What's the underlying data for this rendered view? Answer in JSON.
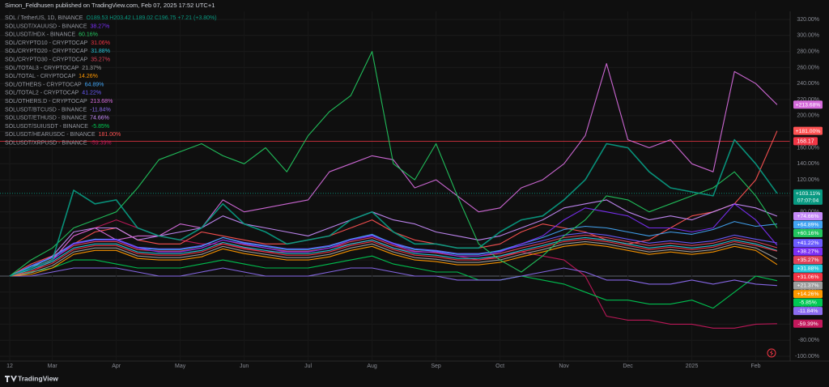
{
  "chart_data": {
    "type": "line",
    "publisher": "Simon_Feldhusen published on TradingView.com, Feb 07, 2025 17:52 UTC+1",
    "brand": "TradingView",
    "grid": true,
    "price_line": 168.17,
    "price_line_color": "#f23645",
    "categories": [
      "12",
      null,
      "Mar",
      null,
      null,
      "Apr",
      null,
      null,
      "May",
      null,
      null,
      "Jun",
      null,
      null,
      "Jul",
      null,
      null,
      "Aug",
      null,
      null,
      "Sep",
      null,
      null,
      "Oct",
      null,
      null,
      "Nov",
      null,
      null,
      "Dec",
      null,
      null,
      "2025",
      null,
      null,
      "Feb",
      null
    ],
    "ylim": [
      -100,
      320
    ],
    "yticks": [
      {
        "value": 320,
        "label": "320.00%"
      },
      {
        "value": 300,
        "label": "300.00%"
      },
      {
        "value": 280,
        "label": "280.00%"
      },
      {
        "value": 260,
        "label": "260.00%"
      },
      {
        "value": 240,
        "label": "240.00%"
      },
      {
        "value": 220,
        "label": "220.00%"
      },
      {
        "value": 200,
        "label": "200.00%"
      },
      {
        "value": 180,
        "label": "180.00%"
      },
      {
        "value": 160,
        "label": "160.00%"
      },
      {
        "value": 140,
        "label": "140.00%"
      },
      {
        "value": 120,
        "label": "120.00%"
      },
      {
        "value": 100,
        "label": "100.00%"
      },
      {
        "value": 80,
        "label": "80.00%"
      },
      {
        "value": 60,
        "label": "60.00%"
      },
      {
        "value": 40,
        "label": "40.00%"
      },
      {
        "value": 20,
        "label": "20.00%"
      },
      {
        "value": 0,
        "label": "0.00%"
      },
      {
        "value": -20,
        "label": "-20.00%"
      },
      {
        "value": -40,
        "label": "-40.00%"
      },
      {
        "value": -60,
        "label": "-60.00%"
      },
      {
        "value": -80,
        "label": "-80.00%"
      },
      {
        "value": -100,
        "label": "-100.00%"
      }
    ],
    "series": [
      {
        "name": "SOL / TetherUS, 1D, BINANCE",
        "legend_value": "O189.53 H203.42 L189.02 C196.75 +7.21 (+3.80%)",
        "end_label": "+103.11%",
        "end_time": "07:07:04",
        "color": "#089981",
        "values": [
          0,
          10,
          20,
          107,
          90,
          95,
          60,
          50,
          45,
          60,
          90,
          65,
          55,
          40,
          45,
          50,
          70,
          80,
          55,
          40,
          40,
          35,
          35,
          55,
          70,
          75,
          95,
          120,
          165,
          160,
          130,
          110,
          105,
          100,
          170,
          140,
          103.11
        ]
      },
      {
        "name": "SOLUSDT/XAUUSD - BINANCE",
        "legend_value": "38.27%",
        "end_label": "+38.27%",
        "color": "#7b2ff7",
        "values": [
          0,
          10,
          20,
          40,
          45,
          45,
          35,
          30,
          30,
          35,
          45,
          40,
          35,
          30,
          30,
          35,
          45,
          50,
          40,
          30,
          30,
          25,
          25,
          30,
          40,
          50,
          70,
          85,
          80,
          75,
          60,
          60,
          55,
          60,
          90,
          70,
          38.27
        ]
      },
      {
        "name": "SOLUSDT/HDX - BINANCE",
        "legend_value": "60.16%",
        "end_label": "+60.16%",
        "color": "#22c55e",
        "values": [
          0,
          20,
          35,
          60,
          70,
          80,
          110,
          145,
          155,
          165,
          150,
          140,
          160,
          130,
          175,
          205,
          225,
          280,
          140,
          120,
          165,
          100,
          40,
          20,
          5,
          25,
          50,
          70,
          100,
          95,
          80,
          90,
          100,
          110,
          130,
          100,
          60.16
        ]
      },
      {
        "name": "SOL/CRYPTO10 - CRYPTOCAP",
        "legend_value": "31.06%",
        "end_label": "+31.06%",
        "color": "#f23645",
        "values": [
          0,
          6,
          16,
          33,
          38,
          38,
          28,
          26,
          26,
          30,
          40,
          34,
          30,
          26,
          26,
          30,
          38,
          43,
          33,
          26,
          24,
          20,
          20,
          23,
          30,
          36,
          43,
          46,
          43,
          38,
          33,
          36,
          33,
          36,
          43,
          38,
          31.06
        ]
      },
      {
        "name": "SOL/CRYPTO20 - CRYPTOCAP",
        "legend_value": "31.88%",
        "end_label": "+31.88%",
        "color": "#26c6da",
        "values": [
          0,
          8,
          18,
          35,
          40,
          40,
          30,
          28,
          28,
          32,
          42,
          36,
          32,
          28,
          28,
          32,
          40,
          45,
          35,
          28,
          26,
          22,
          22,
          25,
          32,
          38,
          45,
          48,
          45,
          40,
          35,
          38,
          35,
          38,
          45,
          40,
          31.88
        ]
      },
      {
        "name": "SOL/CRYPTO30 - CRYPTOCAP",
        "legend_value": "35.27%",
        "end_label": "+35.27%",
        "color": "#e0435a",
        "values": [
          0,
          10,
          21,
          38,
          43,
          43,
          33,
          31,
          31,
          35,
          45,
          39,
          35,
          31,
          31,
          35,
          43,
          48,
          38,
          31,
          29,
          25,
          25,
          28,
          35,
          41,
          48,
          51,
          48,
          43,
          38,
          41,
          38,
          41,
          48,
          43,
          35.27
        ]
      },
      {
        "name": "SOL/TOTAL3 - CRYPTOCAP",
        "legend_value": "21.37%",
        "end_label": "+21.37%",
        "color": "#9e9e9e",
        "values": [
          0,
          4,
          13,
          30,
          35,
          35,
          25,
          23,
          23,
          27,
          37,
          31,
          27,
          23,
          23,
          27,
          35,
          40,
          30,
          23,
          21,
          17,
          17,
          20,
          27,
          33,
          40,
          43,
          40,
          35,
          30,
          33,
          30,
          33,
          40,
          35,
          21.37
        ]
      },
      {
        "name": "SOL/TOTAL - CRYPTOCAP",
        "legend_value": "14.26%",
        "end_label": "+14.26%",
        "color": "#ff9800",
        "values": [
          0,
          2,
          10,
          27,
          32,
          32,
          22,
          20,
          20,
          24,
          34,
          28,
          24,
          20,
          20,
          24,
          32,
          37,
          27,
          20,
          18,
          14,
          14,
          17,
          24,
          30,
          37,
          40,
          37,
          32,
          27,
          30,
          27,
          30,
          37,
          32,
          14.26
        ]
      },
      {
        "name": "SOL/OTHERS - CRYPTOCAP",
        "legend_value": "64.89%",
        "end_label": "+64.89%",
        "color": "#42a5f5",
        "values": [
          0,
          12,
          23,
          40,
          46,
          45,
          35,
          33,
          33,
          37,
          48,
          41,
          37,
          33,
          33,
          37,
          46,
          52,
          40,
          33,
          31,
          27,
          27,
          32,
          40,
          48,
          58,
          62,
          60,
          55,
          50,
          55,
          52,
          58,
          68,
          62,
          64.89
        ]
      },
      {
        "name": "SOL/TOTAL2 - CRYPTOCAP",
        "legend_value": "41.22%",
        "end_label": "+41.22%",
        "color": "#6b5cff",
        "values": [
          0,
          13,
          24,
          41,
          46,
          46,
          36,
          34,
          34,
          38,
          48,
          42,
          38,
          34,
          34,
          38,
          46,
          51,
          41,
          34,
          32,
          28,
          28,
          31,
          38,
          44,
          51,
          54,
          51,
          46,
          41,
          44,
          41,
          44,
          51,
          46,
          41.22
        ]
      },
      {
        "name": "SOL/OTHERS.D - CRYPTOCAP",
        "legend_value": "213.68%",
        "end_label": "+213.68%",
        "color": "#d56bdc",
        "values": [
          0,
          10,
          20,
          50,
          60,
          45,
          50,
          50,
          65,
          60,
          95,
          80,
          85,
          90,
          95,
          130,
          140,
          150,
          145,
          110,
          120,
          100,
          80,
          85,
          110,
          120,
          140,
          175,
          265,
          170,
          160,
          170,
          140,
          130,
          255,
          240,
          213.68
        ]
      },
      {
        "name": "SOLUSDT/BTCUSD - BINANCE",
        "legend_value": "-11.84%",
        "end_label": "-11.84%",
        "color": "#8c6cf0",
        "values": [
          0,
          0,
          5,
          10,
          10,
          10,
          5,
          0,
          0,
          5,
          10,
          5,
          0,
          0,
          0,
          5,
          10,
          10,
          5,
          0,
          0,
          -5,
          -5,
          -5,
          0,
          5,
          10,
          5,
          -5,
          -5,
          -10,
          -10,
          -5,
          -10,
          -5,
          -10,
          -11.84
        ]
      },
      {
        "name": "SOLUSDT/ETHUSD - BINANCE",
        "legend_value": "74.66%",
        "end_label": "+74.66%",
        "color": "#c58af9",
        "values": [
          0,
          10,
          25,
          55,
          60,
          60,
          45,
          50,
          55,
          60,
          75,
          65,
          60,
          55,
          50,
          60,
          70,
          80,
          70,
          65,
          55,
          50,
          45,
          50,
          60,
          70,
          85,
          90,
          95,
          80,
          70,
          75,
          70,
          80,
          90,
          85,
          74.66
        ]
      },
      {
        "name": "SOLUSDT/SUIUSDT - BINANCE",
        "legend_value": "-5.85%",
        "end_label": "-5.85%",
        "color": "#00c853",
        "values": [
          0,
          5,
          10,
          20,
          20,
          15,
          10,
          10,
          10,
          15,
          20,
          15,
          10,
          10,
          10,
          15,
          20,
          25,
          15,
          10,
          5,
          5,
          -5,
          -5,
          0,
          -5,
          -10,
          -20,
          -30,
          -30,
          -35,
          -35,
          -30,
          -40,
          -20,
          0,
          -5.85
        ]
      },
      {
        "name": "SOLUSDT/HEARUSDC - BINANCE",
        "legend_value": "181.00%",
        "end_label": "+181.00%",
        "color": "#ff5252",
        "values": [
          0,
          15,
          25,
          40,
          55,
          60,
          45,
          40,
          40,
          55,
          50,
          45,
          40,
          40,
          45,
          50,
          60,
          70,
          55,
          45,
          40,
          35,
          35,
          40,
          55,
          65,
          60,
          55,
          45,
          40,
          45,
          60,
          75,
          80,
          90,
          120,
          181
        ]
      },
      {
        "name": "SOLUSDT/XRPUSD - BINANCE",
        "legend_value": "-59.39%",
        "end_label": "-59.39%",
        "color": "#c2185b",
        "values": [
          0,
          5,
          20,
          50,
          60,
          70,
          60,
          50,
          45,
          40,
          40,
          35,
          30,
          30,
          30,
          35,
          40,
          45,
          35,
          30,
          30,
          25,
          20,
          25,
          30,
          25,
          20,
          0,
          -50,
          -55,
          -55,
          -60,
          -60,
          -65,
          -65,
          -60,
          -59.39
        ]
      }
    ]
  }
}
